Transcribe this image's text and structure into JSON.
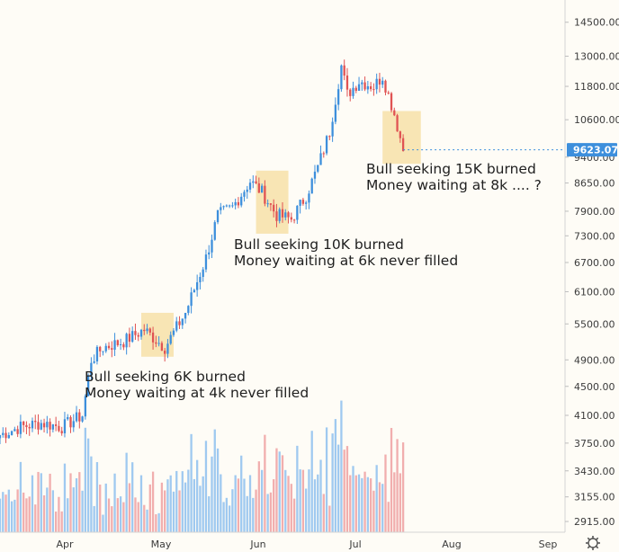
{
  "chart_data": {
    "type": "candlestick",
    "title": "",
    "xlabel": "",
    "ylabel": "",
    "y_scale": "log",
    "ylim": [
      2800,
      15000
    ],
    "y_ticks": [
      "14500.00",
      "13000.00",
      "11800.00",
      "10600.00",
      "9400.00",
      "8650.00",
      "7900.00",
      "7300.00",
      "6700.00",
      "6100.00",
      "5500.00",
      "4900.00",
      "4500.00",
      "4100.00",
      "3750.00",
      "3430.00",
      "3155.00",
      "2915.00"
    ],
    "x_ticks": [
      "Apr",
      "May",
      "Jun",
      "Jul",
      "Aug",
      "Sep"
    ],
    "x_range": [
      "2019-03-02",
      "2019-09-10"
    ],
    "last_price": "9623.07",
    "colors": {
      "up": "#3d8fdc",
      "down": "#e05353",
      "vol_up": "#9fc9f0",
      "vol_down": "#f1aeae",
      "box": "#f7e1a8",
      "last": "#3d8fdc"
    },
    "annotations": [
      {
        "line1": "Bull seeking 6K burned",
        "line2": "Money waiting at 4k never filled"
      },
      {
        "line1": "Bull seeking 10K burned",
        "line2": "Money waiting at 6k never filled"
      },
      {
        "line1": "Bull seeking 15K burned",
        "line2": "Money waiting at 8k .... ?"
      }
    ],
    "highlight_boxes": [
      {
        "from": "2019-04-19",
        "to": "2019-04-30",
        "high": 5700,
        "low": 4950
      },
      {
        "from": "2019-05-28",
        "to": "2019-06-08",
        "high": 9000,
        "low": 7350
      },
      {
        "from": "2019-07-10",
        "to": "2019-07-23",
        "high": 10900,
        "low": 9200
      }
    ],
    "price_series": {
      "date": [
        "2019-03-02",
        "2019-03-09",
        "2019-03-16",
        "2019-03-23",
        "2019-03-30",
        "2019-04-02",
        "2019-04-06",
        "2019-04-13",
        "2019-04-20",
        "2019-04-27",
        "2019-05-04",
        "2019-05-11",
        "2019-05-15",
        "2019-05-20",
        "2019-05-26",
        "2019-05-30",
        "2019-06-04",
        "2019-06-09",
        "2019-06-14",
        "2019-06-18",
        "2019-06-22",
        "2019-06-26",
        "2019-06-28",
        "2019-07-02",
        "2019-07-07",
        "2019-07-10",
        "2019-07-14",
        "2019-07-17"
      ],
      "close": [
        3850,
        3950,
        4000,
        3950,
        4100,
        4900,
        5100,
        5200,
        5400,
        5100,
        5700,
        6800,
        7800,
        8000,
        8700,
        8400,
        7800,
        7700,
        8300,
        9100,
        10200,
        12600,
        11500,
        12000,
        11800,
        12200,
        10800,
        9623
      ]
    },
    "volume_note": "volume bars along bottom, blue = up day, red = down day"
  },
  "ui": {
    "settings_icon": "gear-icon"
  }
}
